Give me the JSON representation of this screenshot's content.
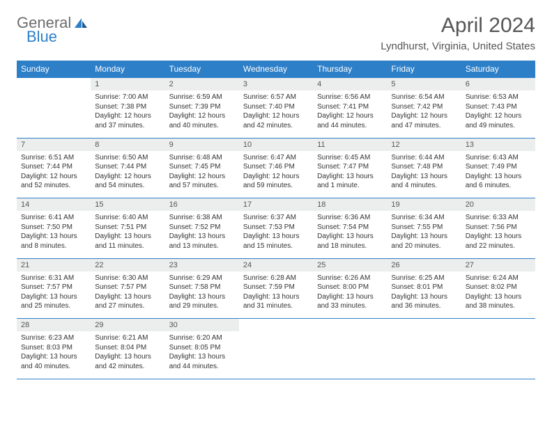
{
  "brand": {
    "text1": "General",
    "text2": "Blue"
  },
  "title": "April 2024",
  "location": "Lyndhurst, Virginia, United States",
  "colors": {
    "accent": "#2d7fc8",
    "header_text": "#ffffff",
    "daynum_bg": "#eceded"
  },
  "day_headers": [
    "Sunday",
    "Monday",
    "Tuesday",
    "Wednesday",
    "Thursday",
    "Friday",
    "Saturday"
  ],
  "weeks": [
    {
      "days": [
        {
          "n": "",
          "blank": true
        },
        {
          "n": "1",
          "sunrise": "Sunrise: 7:00 AM",
          "sunset": "Sunset: 7:38 PM",
          "daylight": "Daylight: 12 hours and 37 minutes."
        },
        {
          "n": "2",
          "sunrise": "Sunrise: 6:59 AM",
          "sunset": "Sunset: 7:39 PM",
          "daylight": "Daylight: 12 hours and 40 minutes."
        },
        {
          "n": "3",
          "sunrise": "Sunrise: 6:57 AM",
          "sunset": "Sunset: 7:40 PM",
          "daylight": "Daylight: 12 hours and 42 minutes."
        },
        {
          "n": "4",
          "sunrise": "Sunrise: 6:56 AM",
          "sunset": "Sunset: 7:41 PM",
          "daylight": "Daylight: 12 hours and 44 minutes."
        },
        {
          "n": "5",
          "sunrise": "Sunrise: 6:54 AM",
          "sunset": "Sunset: 7:42 PM",
          "daylight": "Daylight: 12 hours and 47 minutes."
        },
        {
          "n": "6",
          "sunrise": "Sunrise: 6:53 AM",
          "sunset": "Sunset: 7:43 PM",
          "daylight": "Daylight: 12 hours and 49 minutes."
        }
      ]
    },
    {
      "days": [
        {
          "n": "7",
          "sunrise": "Sunrise: 6:51 AM",
          "sunset": "Sunset: 7:44 PM",
          "daylight": "Daylight: 12 hours and 52 minutes."
        },
        {
          "n": "8",
          "sunrise": "Sunrise: 6:50 AM",
          "sunset": "Sunset: 7:44 PM",
          "daylight": "Daylight: 12 hours and 54 minutes."
        },
        {
          "n": "9",
          "sunrise": "Sunrise: 6:48 AM",
          "sunset": "Sunset: 7:45 PM",
          "daylight": "Daylight: 12 hours and 57 minutes."
        },
        {
          "n": "10",
          "sunrise": "Sunrise: 6:47 AM",
          "sunset": "Sunset: 7:46 PM",
          "daylight": "Daylight: 12 hours and 59 minutes."
        },
        {
          "n": "11",
          "sunrise": "Sunrise: 6:45 AM",
          "sunset": "Sunset: 7:47 PM",
          "daylight": "Daylight: 13 hours and 1 minute."
        },
        {
          "n": "12",
          "sunrise": "Sunrise: 6:44 AM",
          "sunset": "Sunset: 7:48 PM",
          "daylight": "Daylight: 13 hours and 4 minutes."
        },
        {
          "n": "13",
          "sunrise": "Sunrise: 6:43 AM",
          "sunset": "Sunset: 7:49 PM",
          "daylight": "Daylight: 13 hours and 6 minutes."
        }
      ]
    },
    {
      "days": [
        {
          "n": "14",
          "sunrise": "Sunrise: 6:41 AM",
          "sunset": "Sunset: 7:50 PM",
          "daylight": "Daylight: 13 hours and 8 minutes."
        },
        {
          "n": "15",
          "sunrise": "Sunrise: 6:40 AM",
          "sunset": "Sunset: 7:51 PM",
          "daylight": "Daylight: 13 hours and 11 minutes."
        },
        {
          "n": "16",
          "sunrise": "Sunrise: 6:38 AM",
          "sunset": "Sunset: 7:52 PM",
          "daylight": "Daylight: 13 hours and 13 minutes."
        },
        {
          "n": "17",
          "sunrise": "Sunrise: 6:37 AM",
          "sunset": "Sunset: 7:53 PM",
          "daylight": "Daylight: 13 hours and 15 minutes."
        },
        {
          "n": "18",
          "sunrise": "Sunrise: 6:36 AM",
          "sunset": "Sunset: 7:54 PM",
          "daylight": "Daylight: 13 hours and 18 minutes."
        },
        {
          "n": "19",
          "sunrise": "Sunrise: 6:34 AM",
          "sunset": "Sunset: 7:55 PM",
          "daylight": "Daylight: 13 hours and 20 minutes."
        },
        {
          "n": "20",
          "sunrise": "Sunrise: 6:33 AM",
          "sunset": "Sunset: 7:56 PM",
          "daylight": "Daylight: 13 hours and 22 minutes."
        }
      ]
    },
    {
      "days": [
        {
          "n": "21",
          "sunrise": "Sunrise: 6:31 AM",
          "sunset": "Sunset: 7:57 PM",
          "daylight": "Daylight: 13 hours and 25 minutes."
        },
        {
          "n": "22",
          "sunrise": "Sunrise: 6:30 AM",
          "sunset": "Sunset: 7:57 PM",
          "daylight": "Daylight: 13 hours and 27 minutes."
        },
        {
          "n": "23",
          "sunrise": "Sunrise: 6:29 AM",
          "sunset": "Sunset: 7:58 PM",
          "daylight": "Daylight: 13 hours and 29 minutes."
        },
        {
          "n": "24",
          "sunrise": "Sunrise: 6:28 AM",
          "sunset": "Sunset: 7:59 PM",
          "daylight": "Daylight: 13 hours and 31 minutes."
        },
        {
          "n": "25",
          "sunrise": "Sunrise: 6:26 AM",
          "sunset": "Sunset: 8:00 PM",
          "daylight": "Daylight: 13 hours and 33 minutes."
        },
        {
          "n": "26",
          "sunrise": "Sunrise: 6:25 AM",
          "sunset": "Sunset: 8:01 PM",
          "daylight": "Daylight: 13 hours and 36 minutes."
        },
        {
          "n": "27",
          "sunrise": "Sunrise: 6:24 AM",
          "sunset": "Sunset: 8:02 PM",
          "daylight": "Daylight: 13 hours and 38 minutes."
        }
      ]
    },
    {
      "days": [
        {
          "n": "28",
          "sunrise": "Sunrise: 6:23 AM",
          "sunset": "Sunset: 8:03 PM",
          "daylight": "Daylight: 13 hours and 40 minutes."
        },
        {
          "n": "29",
          "sunrise": "Sunrise: 6:21 AM",
          "sunset": "Sunset: 8:04 PM",
          "daylight": "Daylight: 13 hours and 42 minutes."
        },
        {
          "n": "30",
          "sunrise": "Sunrise: 6:20 AM",
          "sunset": "Sunset: 8:05 PM",
          "daylight": "Daylight: 13 hours and 44 minutes."
        },
        {
          "n": "",
          "blank": true
        },
        {
          "n": "",
          "blank": true
        },
        {
          "n": "",
          "blank": true
        },
        {
          "n": "",
          "blank": true
        }
      ]
    }
  ]
}
